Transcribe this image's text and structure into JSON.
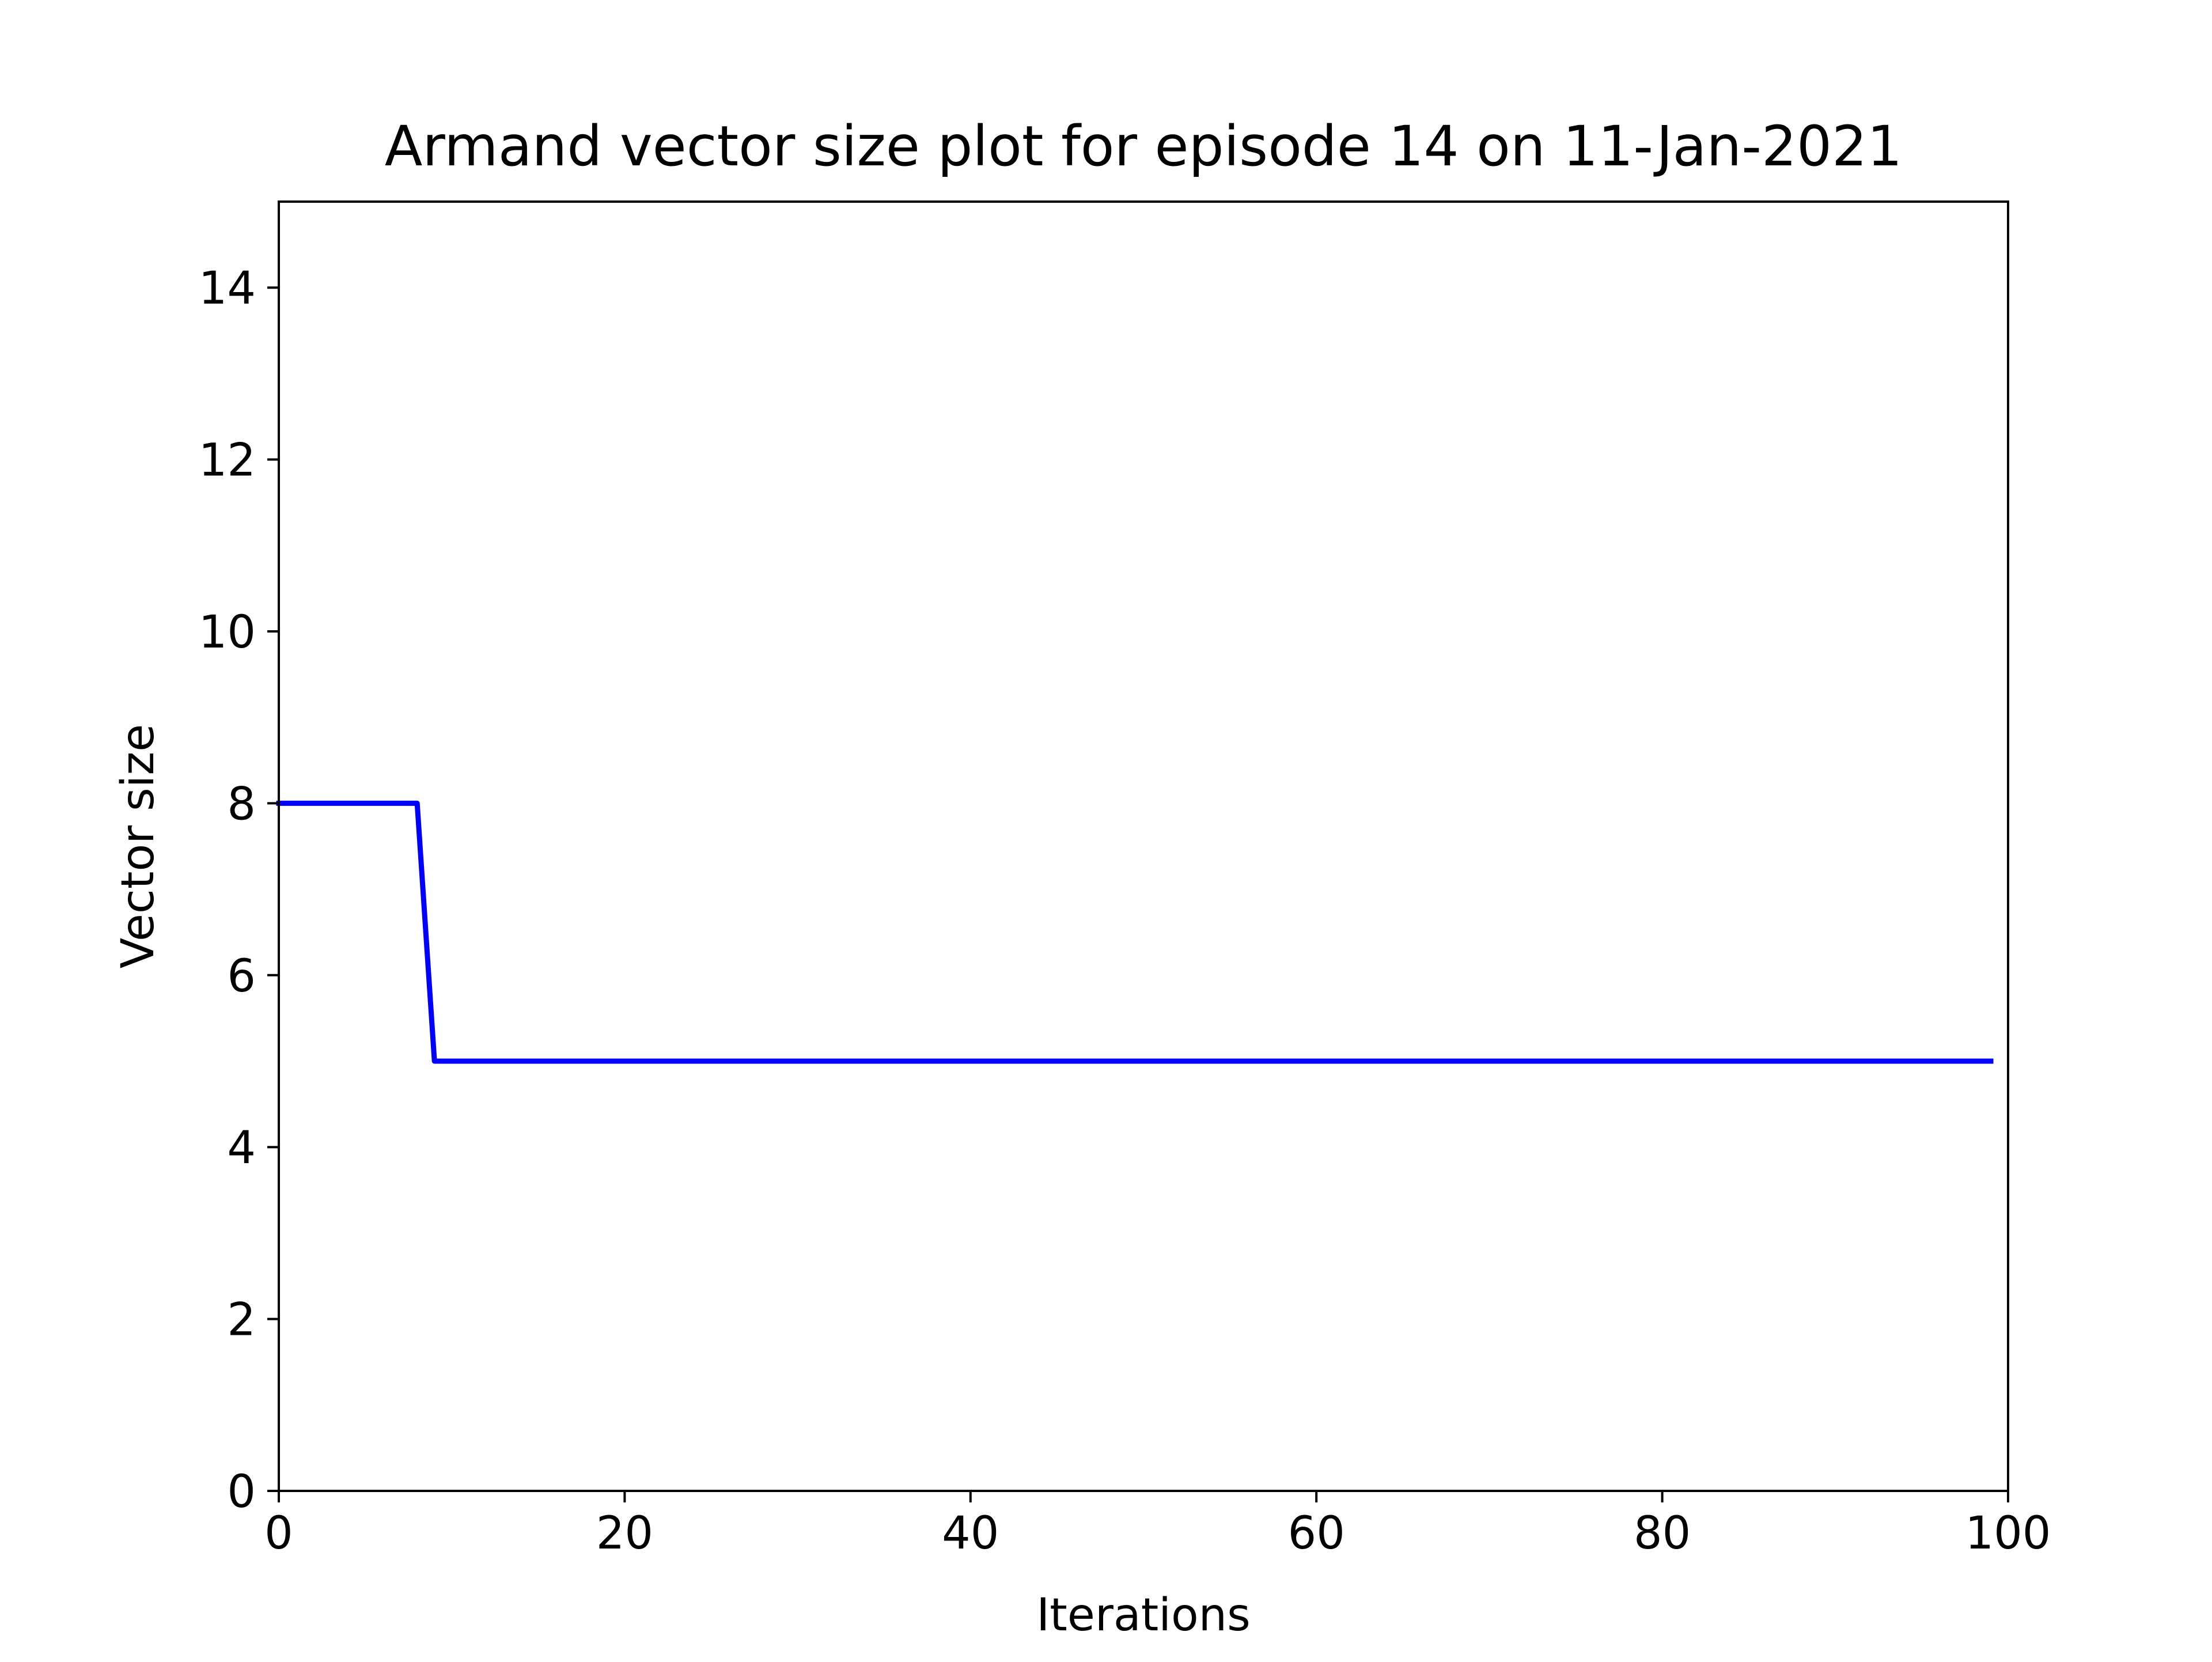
{
  "chart_data": {
    "type": "line",
    "title": "Armand vector size plot for episode 14 on 11-Jan-2021",
    "xlabel": "Iterations",
    "ylabel": "Vector size",
    "xlim": [
      0,
      100
    ],
    "ylim": [
      0,
      15
    ],
    "xticks": [
      0,
      20,
      40,
      60,
      80,
      100
    ],
    "yticks": [
      0,
      2,
      4,
      6,
      8,
      10,
      12,
      14
    ],
    "grid": false,
    "series": [
      {
        "color": "#0000ff",
        "x": [
          0,
          8,
          9,
          99
        ],
        "y": [
          8,
          8,
          5,
          5
        ]
      }
    ]
  }
}
